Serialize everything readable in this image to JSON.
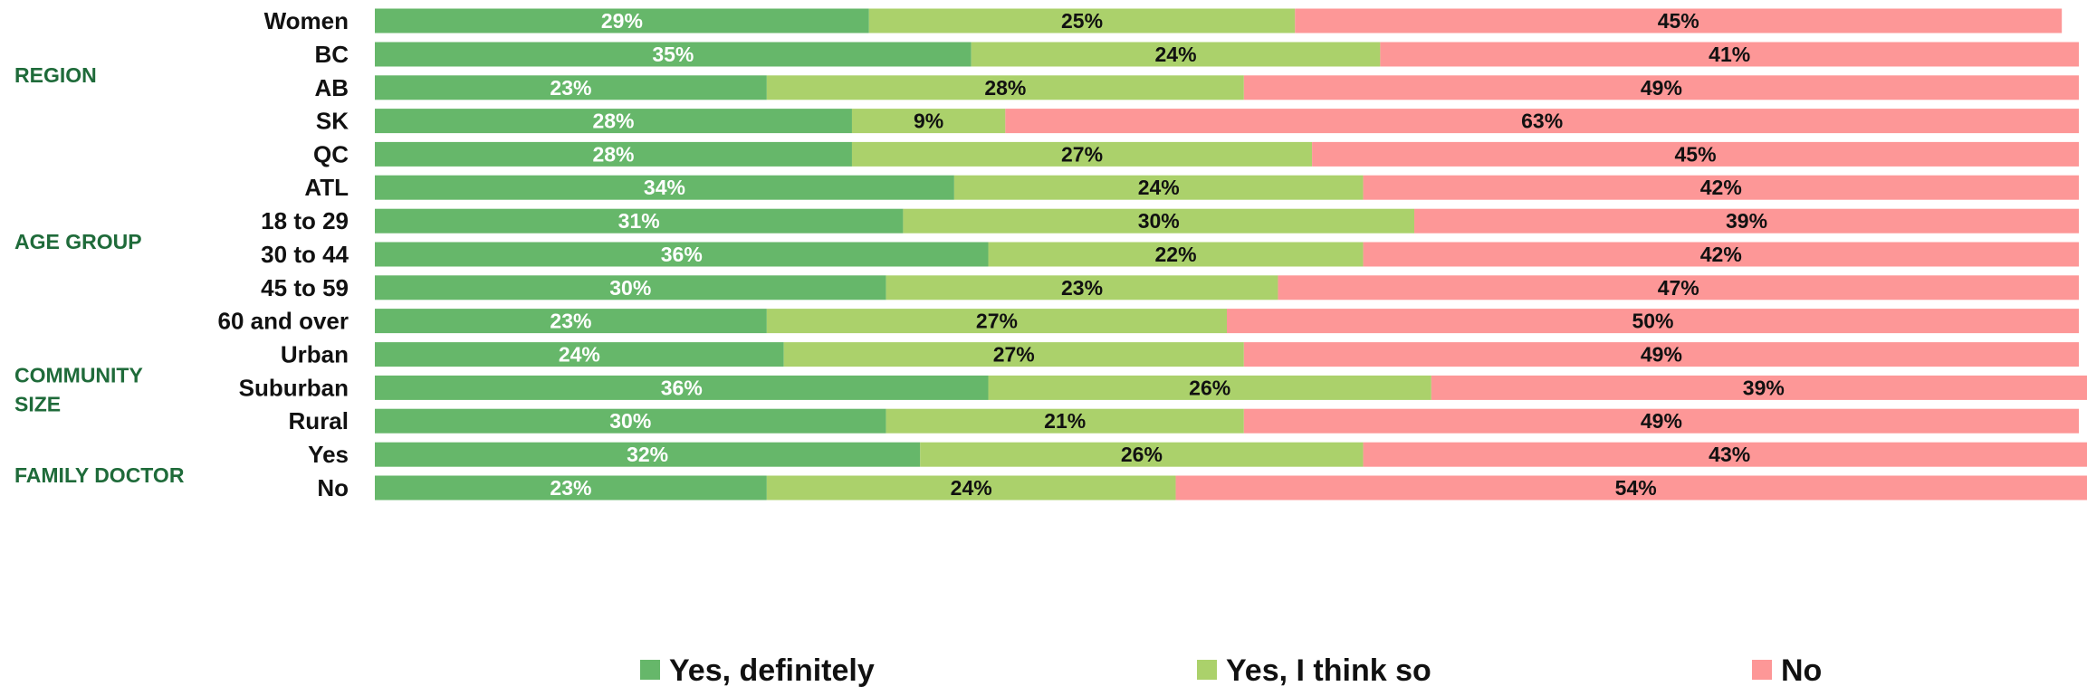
{
  "chart_data": {
    "type": "bar",
    "orientation": "horizontal",
    "stacked": true,
    "percent_stacked": true,
    "xlim": [
      0,
      100
    ],
    "grid": false,
    "legend_position": "bottom",
    "colors": {
      "Yes, definitely": "#66b76a",
      "Yes, I think so": "#abd16b",
      "No": "#fd9797"
    },
    "label_colors": {
      "Yes, definitely": "#ffffff",
      "Yes, I think so": "#111111",
      "No": "#111111"
    },
    "series": [
      {
        "name": "Yes, definitely"
      },
      {
        "name": "Yes, I think so"
      },
      {
        "name": "No"
      }
    ],
    "groups": [
      {
        "name": "",
        "rows": [
          {
            "label": "Women",
            "values": [
              29,
              25,
              45
            ]
          }
        ]
      },
      {
        "name": "REGION",
        "rows": [
          {
            "label": "BC",
            "values": [
              35,
              24,
              41
            ]
          },
          {
            "label": "AB",
            "values": [
              23,
              28,
              49
            ]
          },
          {
            "label": "SK",
            "values": [
              28,
              9,
              63
            ]
          },
          {
            "label": "QC",
            "values": [
              28,
              27,
              45
            ]
          },
          {
            "label": "ATL",
            "values": [
              34,
              24,
              42
            ]
          }
        ]
      },
      {
        "name": "AGE GROUP",
        "rows": [
          {
            "label": "18 to 29",
            "values": [
              31,
              30,
              39
            ]
          },
          {
            "label": "30 to 44",
            "values": [
              36,
              22,
              42
            ]
          },
          {
            "label": "45 to 59",
            "values": [
              30,
              23,
              47
            ]
          },
          {
            "label": "60 and over",
            "values": [
              23,
              27,
              50
            ]
          }
        ]
      },
      {
        "name": "COMMUNITY SIZE",
        "name_lines": [
          "COMMUNITY",
          "SIZE"
        ],
        "rows": [
          {
            "label": "Urban",
            "values": [
              24,
              27,
              49
            ]
          },
          {
            "label": "Suburban",
            "values": [
              36,
              26,
              39
            ]
          },
          {
            "label": "Rural",
            "values": [
              30,
              21,
              49
            ]
          }
        ]
      },
      {
        "name": "FAMILY DOCTOR",
        "rows": [
          {
            "label": "Yes",
            "values": [
              32,
              26,
              43
            ]
          },
          {
            "label": "No",
            "values": [
              23,
              24,
              54
            ]
          }
        ]
      }
    ]
  }
}
